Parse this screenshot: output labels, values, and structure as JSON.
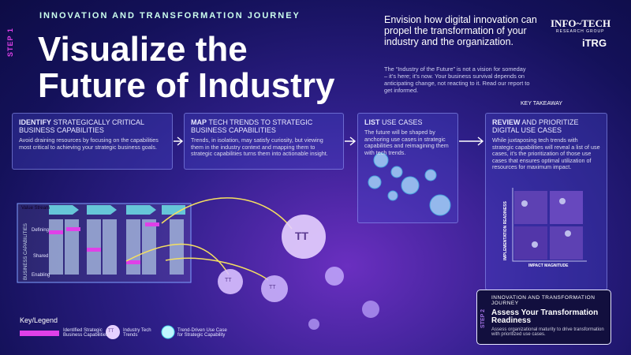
{
  "header": {
    "kicker": "INNOVATION AND TRANSFORMATION JOURNEY",
    "step": "STEP 1",
    "title_lines": [
      "Visualize the",
      "Future of Industry"
    ]
  },
  "intro": {
    "lead": "Envision how digital innovation can propel the transformation of your industry and the organization.",
    "body": "The “Industry of the Future” is not a vision for someday – it’s here; it’s now. Your business survival depends on anticipating change, not reacting to it. Read our report to get informed."
  },
  "brand": {
    "name": "INFO~TECH",
    "sub": "RESEARCH GROUP",
    "mark": "iTRG"
  },
  "key_takeaway": "KEY TAKEAWAY",
  "steps": [
    {
      "keyword": "IDENTIFY",
      "heading": "STRATEGICALLY CRITICAL BUSINESS CAPABILITIES",
      "text": "Avoid draining resources by focusing on the capabilities most critical to achieving your strategic business goals."
    },
    {
      "keyword": "MAP",
      "heading": "TECH TRENDS TO STRATEGIC BUSINESS CAPABILITIES",
      "text": "Trends, in isolation, may satisfy curiosity, but viewing them in the industry context and mapping them to strategic capabilities turns them into actionable insight."
    },
    {
      "keyword": "LIST",
      "heading": "USE CASES",
      "text": "The future will be shaped by anchoring use cases in strategic capabilities and reimagining them with tech trends."
    },
    {
      "keyword": "REVIEW",
      "heading": "AND PRIORITIZE DIGITAL USE CASES",
      "text": "While juxtaposing tech trends with strategic capabilities will reveal a list of use cases, it’s the prioritization of those use cases that ensures optimal utilization of resources for maximum impact."
    }
  ],
  "capability_map": {
    "header": "Value Stream",
    "axis": "BUSINESS CAPABILITIES",
    "rows": [
      "Defining",
      "Shared",
      "Enabling"
    ]
  },
  "trend_symbol": "TT",
  "use_case_matrix": {
    "y_axis": "IMPLEMENTATION READINESS",
    "x_axis": "IMPACT MAGNITUDE"
  },
  "legend": {
    "title": "Key/Legend",
    "items": [
      "Identified Strategic Business Capabilities",
      "Industry Tech Trends",
      "Trend-Driven Use Case for Strategic Capability"
    ]
  },
  "step2": {
    "step": "STEP 2",
    "kicker": "INNOVATION AND TRANSFORMATION JOURNEY",
    "title": "Assess Your Transformation Readiness",
    "text": "Assess organizational maturity to drive transformation with prioritized use cases."
  }
}
